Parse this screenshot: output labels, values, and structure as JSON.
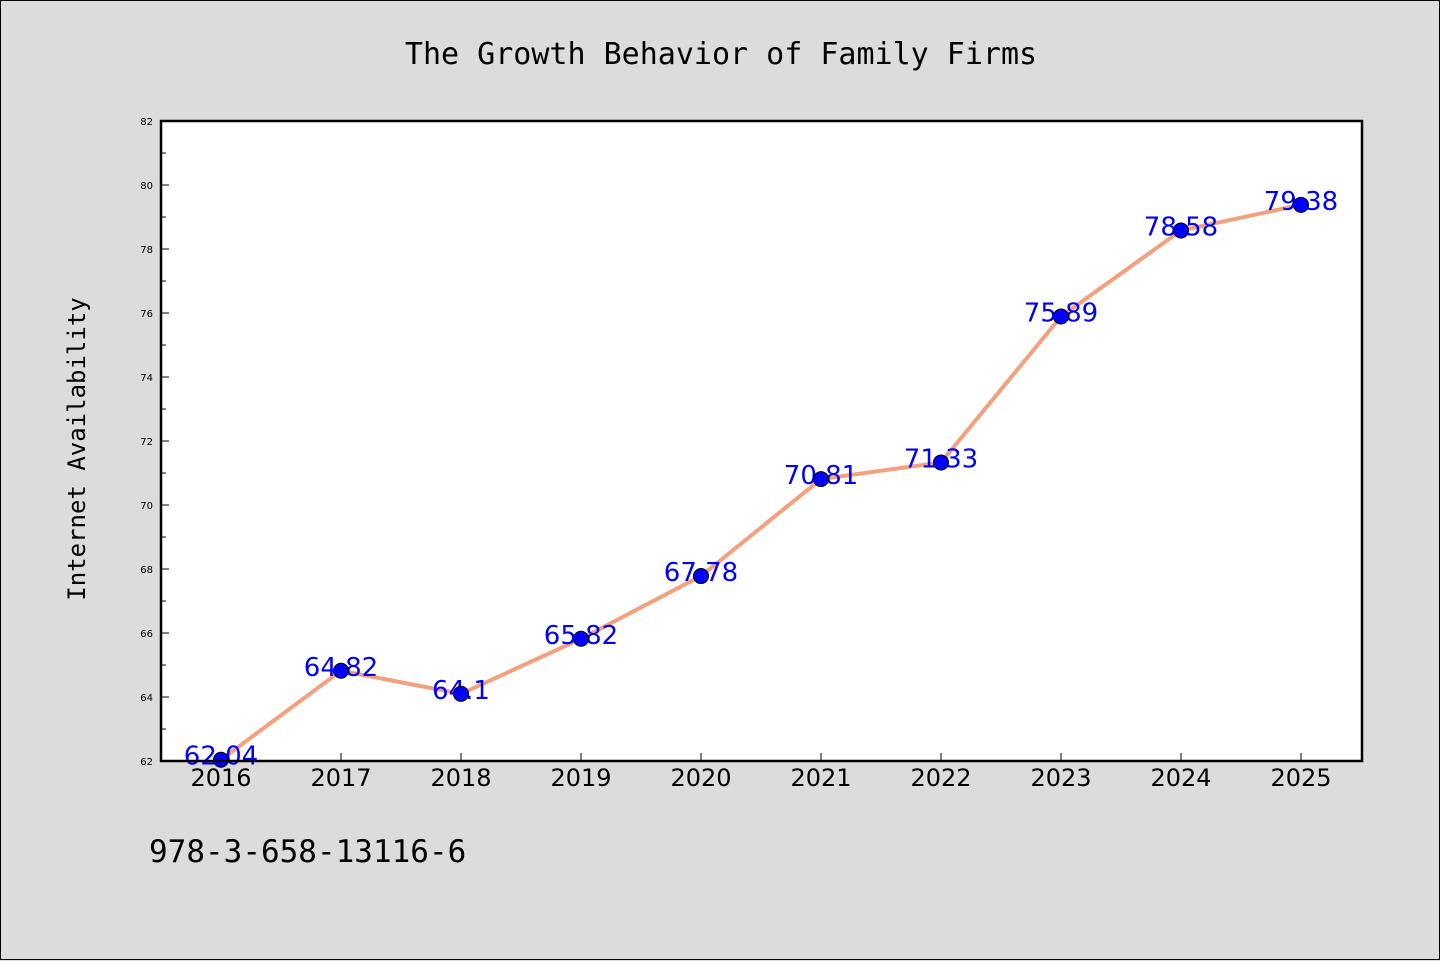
{
  "chart_data": {
    "type": "line",
    "title": "The Growth Behavior of Family Firms",
    "xlabel": "",
    "ylabel": "Internet Availability",
    "categories": [
      "2016",
      "2017",
      "2018",
      "2019",
      "2020",
      "2021",
      "2022",
      "2023",
      "2024",
      "2025"
    ],
    "series": [
      {
        "values": [
          62.04,
          64.82,
          64.1,
          65.82,
          67.78,
          70.81,
          71.33,
          75.89,
          78.58,
          79.38
        ],
        "labels": [
          "62.04",
          "64.82",
          "64.1",
          "65.82",
          "67.78",
          "70.81",
          "71.33",
          "75.89",
          "78.58",
          "79.38"
        ],
        "line_color": "#f4a07e",
        "marker_color": "#0000ff"
      }
    ],
    "ylim": [
      62,
      82
    ],
    "yticks": [
      "62",
      "64",
      "66",
      "68",
      "70",
      "72",
      "74",
      "76",
      "78",
      "80",
      "82"
    ],
    "grid": false,
    "legend": "none",
    "plot_background": "#ffffff",
    "figure_background": "#dcdcdc"
  },
  "footnote": "978-3-658-13116-6"
}
